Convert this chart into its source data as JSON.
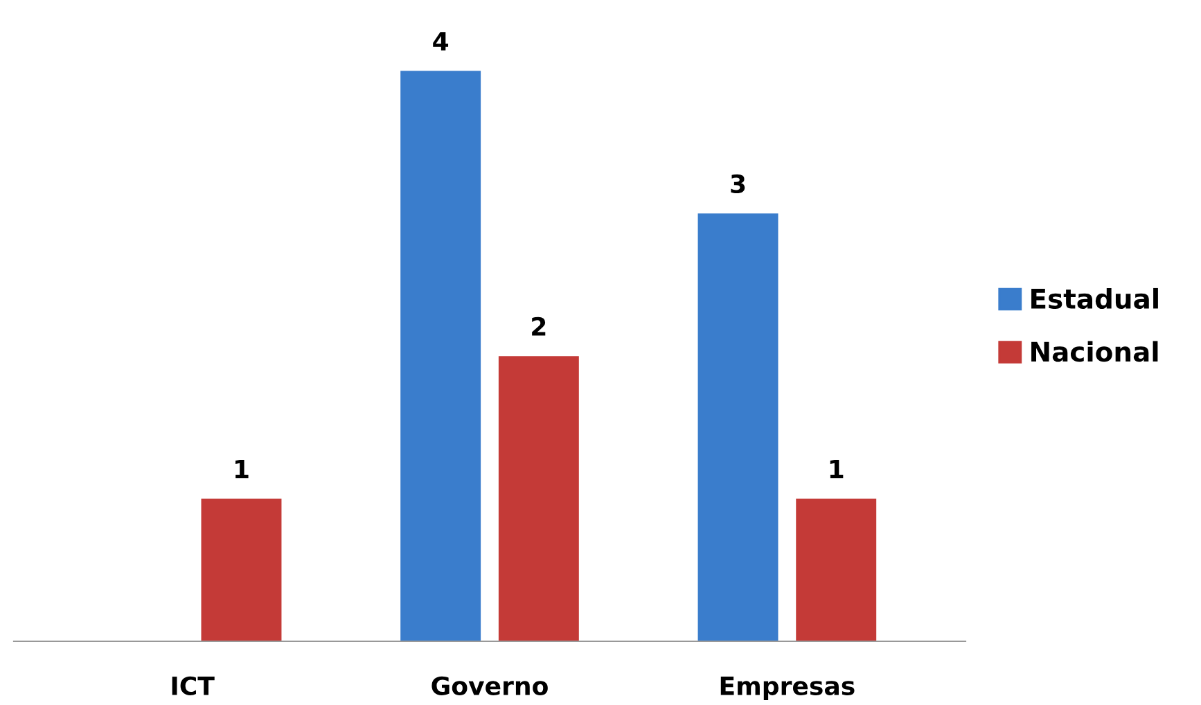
{
  "chart_data": {
    "type": "bar",
    "categories": [
      "ICT",
      "Governo",
      "Empresas"
    ],
    "series": [
      {
        "name": "Estadual",
        "color": "#3a7dcc",
        "values": [
          null,
          4,
          3
        ]
      },
      {
        "name": "Nacional",
        "color": "#c43a37",
        "values": [
          1,
          2,
          1
        ]
      }
    ],
    "data_labels": true,
    "legend": "right",
    "grid": false
  }
}
